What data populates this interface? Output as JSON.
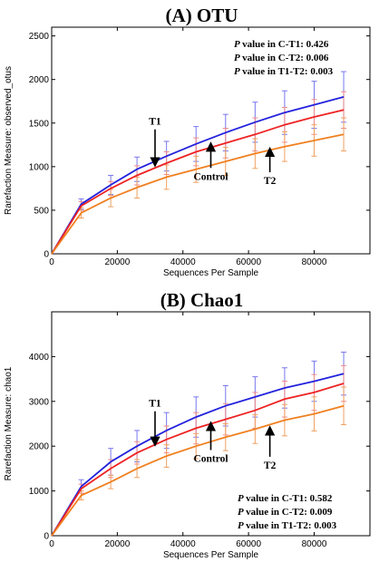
{
  "chart_data": [
    {
      "type": "line",
      "title": "(A) OTU",
      "xlabel": "Sequences Per Sample",
      "ylabel": "Rarefaction Measure: observed_otus",
      "xlim": [
        0,
        97000
      ],
      "ylim": [
        0,
        2600
      ],
      "xticks": [
        0,
        20000,
        40000,
        60000,
        80000
      ],
      "yticks": [
        0,
        500,
        1000,
        1500,
        2000,
        2500
      ],
      "grid": false,
      "legend": "none",
      "x": [
        0,
        9000,
        18000,
        26000,
        35000,
        44000,
        53000,
        62000,
        71000,
        80000,
        89000
      ],
      "series": [
        {
          "color": "#2222dd",
          "errcolor": "#7777ee",
          "values": [
            0,
            570,
            790,
            970,
            1120,
            1260,
            1390,
            1510,
            1620,
            1710,
            1800
          ],
          "err": [
            0,
            60,
            110,
            140,
            170,
            200,
            210,
            230,
            250,
            270,
            290
          ]
        },
        {
          "color": "#ee2222",
          "errcolor": "#ee8888",
          "values": [
            0,
            550,
            750,
            900,
            1040,
            1170,
            1270,
            1370,
            1480,
            1570,
            1650
          ],
          "err": [
            0,
            50,
            80,
            110,
            130,
            160,
            170,
            190,
            200,
            200,
            210
          ]
        },
        {
          "color": "#f08020",
          "errcolor": "#f0a060",
          "values": [
            0,
            470,
            640,
            760,
            880,
            970,
            1060,
            1150,
            1230,
            1300,
            1370
          ],
          "err": [
            0,
            60,
            100,
            120,
            140,
            150,
            160,
            170,
            170,
            180,
            190
          ]
        }
      ],
      "annotations": [
        {
          "text": "T1",
          "x": 31500,
          "y": 1480,
          "arrow_to_y": 1050
        },
        {
          "text": "Control",
          "x": 48500,
          "y": 850,
          "arrow_to_y": 1230
        },
        {
          "text": "T2",
          "x": 66500,
          "y": 800,
          "arrow_to_y": 1170
        }
      ],
      "pvalues": [
        {
          "label": "value in C-T1: ",
          "value": "0.426"
        },
        {
          "label": "value in C-T2: ",
          "value": "0.006"
        },
        {
          "label": "value in T1-T2: ",
          "value": "0.003"
        }
      ]
    },
    {
      "type": "line",
      "title": "(B) Chao1",
      "xlabel": "Sequences Per Sample",
      "ylabel": "Rarefaction Measure: chao1",
      "xlim": [
        0,
        97000
      ],
      "ylim": [
        0,
        5000
      ],
      "xticks": [
        0,
        20000,
        40000,
        60000,
        80000
      ],
      "yticks": [
        0,
        1000,
        2000,
        3000,
        4000
      ],
      "grid": false,
      "legend": "none",
      "x": [
        0,
        9000,
        18000,
        26000,
        35000,
        44000,
        53000,
        62000,
        71000,
        80000,
        89000
      ],
      "series": [
        {
          "color": "#2222dd",
          "errcolor": "#7777ee",
          "values": [
            0,
            1100,
            1650,
            2000,
            2350,
            2650,
            2900,
            3100,
            3300,
            3450,
            3620
          ],
          "err": [
            0,
            150,
            300,
            350,
            400,
            450,
            450,
            450,
            450,
            450,
            480
          ]
        },
        {
          "color": "#ee2222",
          "errcolor": "#ee8888",
          "values": [
            0,
            1050,
            1500,
            1850,
            2150,
            2400,
            2600,
            2800,
            3050,
            3200,
            3400
          ],
          "err": [
            0,
            100,
            200,
            250,
            300,
            350,
            350,
            400,
            400,
            400,
            400
          ]
        },
        {
          "color": "#f08020",
          "errcolor": "#f0a060",
          "values": [
            0,
            900,
            1200,
            1500,
            1780,
            2000,
            2200,
            2380,
            2580,
            2720,
            2900
          ],
          "err": [
            0,
            100,
            150,
            200,
            250,
            280,
            300,
            320,
            350,
            380,
            420
          ]
        }
      ],
      "annotations": [
        {
          "text": "T1",
          "x": 31500,
          "y": 2880,
          "arrow_to_y": 2100
        },
        {
          "text": "Control",
          "x": 48500,
          "y": 1650,
          "arrow_to_y": 2450
        },
        {
          "text": "T2",
          "x": 66500,
          "y": 1500,
          "arrow_to_y": 2350
        }
      ],
      "pvalues": [
        {
          "label": "value in C-T1: ",
          "value": "0.582"
        },
        {
          "label": "value in C-T2: ",
          "value": "0.009"
        },
        {
          "label": "value in T1-T2: ",
          "value": "0.003"
        }
      ]
    }
  ]
}
